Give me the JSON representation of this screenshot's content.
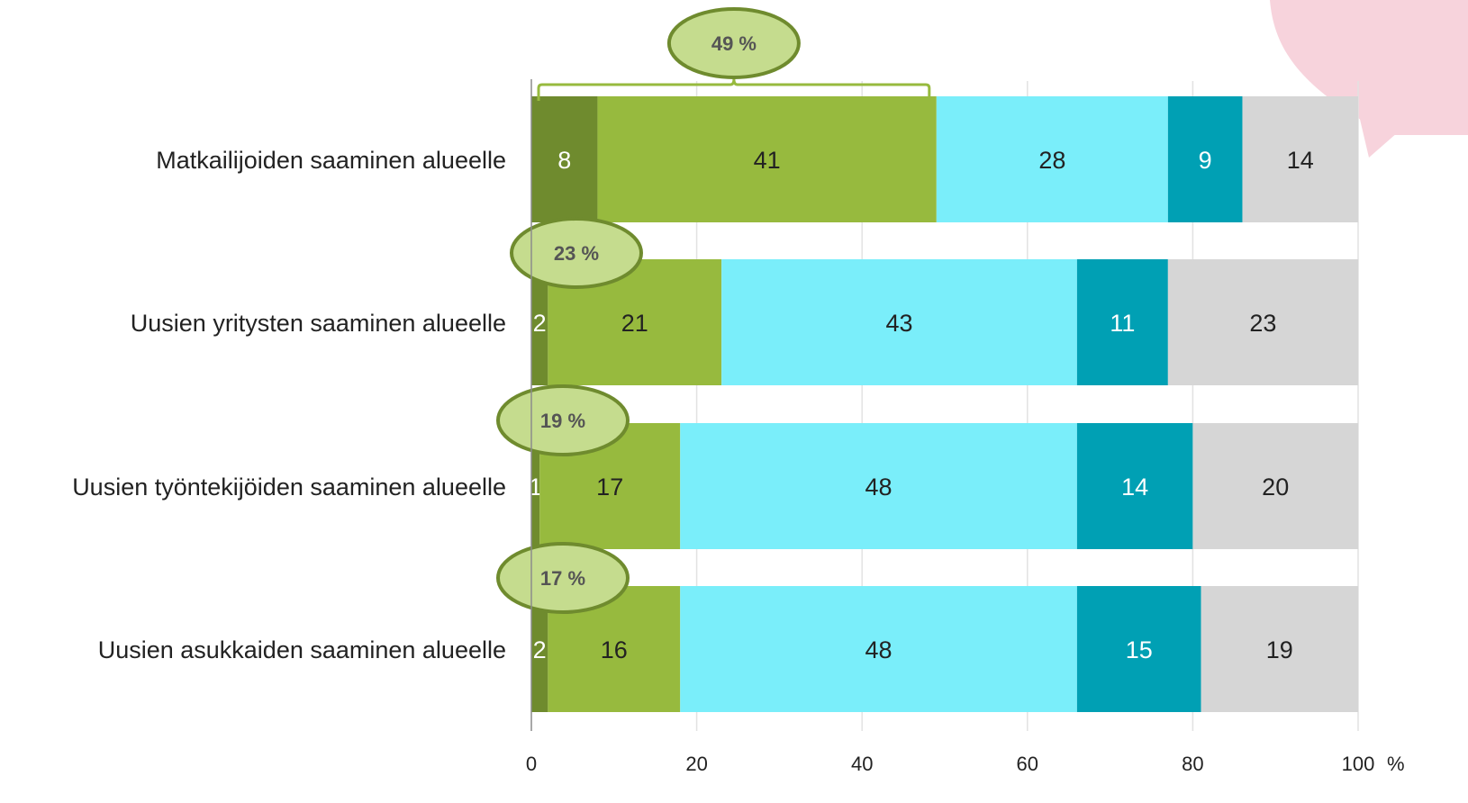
{
  "chart_data": {
    "type": "bar",
    "orientation": "horizontal",
    "stacked": true,
    "categories": [
      "Matkailijoiden saaminen alueelle",
      "Uusien yritysten saaminen alueelle",
      "Uusien työntekijöiden saaminen alueelle",
      "Uusien asukkaiden saaminen alueelle"
    ],
    "series": [
      {
        "values": [
          8,
          2,
          1,
          2
        ],
        "color": "#6f8b2e",
        "label_color": "#ffffff"
      },
      {
        "values": [
          41,
          21,
          17,
          16
        ],
        "color": "#97ba3e",
        "label_color": "#222222"
      },
      {
        "values": [
          28,
          43,
          48,
          48
        ],
        "color": "#7aeefa",
        "label_color": "#222222"
      },
      {
        "values": [
          9,
          11,
          14,
          15
        ],
        "color": "#00a0b4",
        "label_color": "#ffffff"
      },
      {
        "values": [
          14,
          23,
          20,
          19
        ],
        "color": "#d6d6d6",
        "label_color": "#222222"
      }
    ],
    "annotations": [
      "49 %",
      "23 %",
      "19 %",
      "17 %"
    ],
    "annotation_color": "#c5dc8e",
    "annotation_stroke": "#6f8b2e",
    "xlim": [
      0,
      100
    ],
    "xticks": [
      0,
      20,
      40,
      60,
      80,
      100
    ],
    "xunit": "%",
    "grid": true,
    "legend": "none",
    "decoration_color": "#f7d3dc"
  }
}
